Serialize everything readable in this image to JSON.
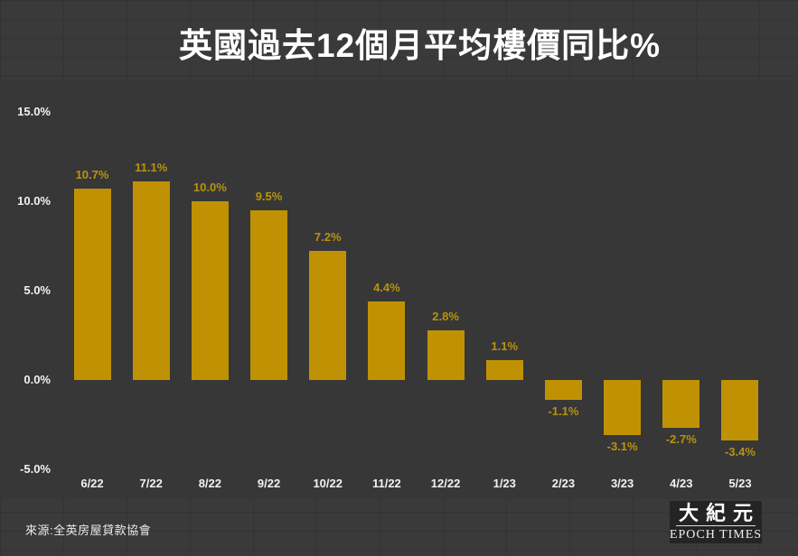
{
  "title": "英國過去12個月平均樓價同比%",
  "source_note": "來源:全英房屋貸款協會",
  "logo": {
    "name_cjk": "大紀元",
    "name_latin": "EPOCH TIMES"
  },
  "colors": {
    "background": "#3a3a3a",
    "chart_background": "#373737",
    "bar": "#c09203",
    "value_label": "#b9930f",
    "axis_text": "#f2f2f2",
    "title_text": "#ffffff",
    "logo_background": "#242424"
  },
  "chart_data": {
    "type": "bar",
    "title": "英國過去12個月平均樓價同比%",
    "categories": [
      "6/22",
      "7/22",
      "8/22",
      "9/22",
      "10/22",
      "11/22",
      "12/22",
      "1/23",
      "2/23",
      "3/23",
      "4/23",
      "5/23"
    ],
    "values": [
      10.7,
      11.1,
      10.0,
      9.5,
      7.2,
      4.4,
      2.8,
      1.1,
      -1.1,
      -3.1,
      -2.7,
      -3.4
    ],
    "data_labels": [
      "10.7%",
      "11.1%",
      "10.0%",
      "9.5%",
      "7.2%",
      "4.4%",
      "2.8%",
      "1.1%",
      "-1.1%",
      "-3.1%",
      "-2.7%",
      "-3.4%"
    ],
    "xlabel": "",
    "ylabel": "",
    "ylim": [
      -5,
      15
    ],
    "yticks": [
      15,
      10,
      5,
      0,
      -5
    ],
    "ytick_labels": [
      "15.0%",
      "10.0%",
      "5.0%",
      "0.0%",
      "-5.0%"
    ],
    "grid": false,
    "legend": "none",
    "bar_color": "#c09203"
  }
}
